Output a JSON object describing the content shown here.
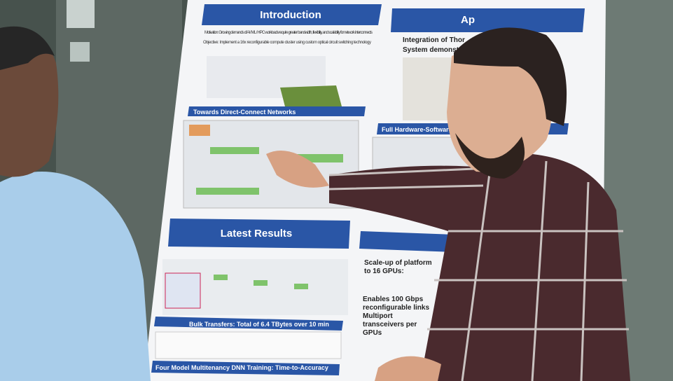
{
  "poster": {
    "introduction": {
      "heading": "Introduction",
      "motivation": "Motivation: Growing demands of AI / ML / HPC workloads require greater bandwidth, flexibility, and scalability for network interconnects",
      "objective": "Objective: Implement a 16x reconfigurable compute cluster using custom optical circuit switching technology"
    },
    "direct_connect": {
      "heading": "Towards Direct-Connect Networks"
    },
    "approach": {
      "heading": "Ap",
      "lines": [
        "Integration of Thor",
        "System demonstrat"
      ]
    },
    "hardware": {
      "heading": "Full Hardware-Software"
    },
    "latest_results": {
      "heading": "Latest Results",
      "bulk": "Bulk Transfers: Total of 6.4 TBytes over 10 min",
      "footer": "Four Model Multitenancy DNN Training: Time-to-Accuracy"
    },
    "scale_up": {
      "lines": [
        "Scale-up of platform",
        "to 16 GPUs:",
        "Enables 100 Gbps",
        "reconfigurable links",
        "Multiport",
        "transceivers per",
        "GPUs"
      ]
    }
  }
}
